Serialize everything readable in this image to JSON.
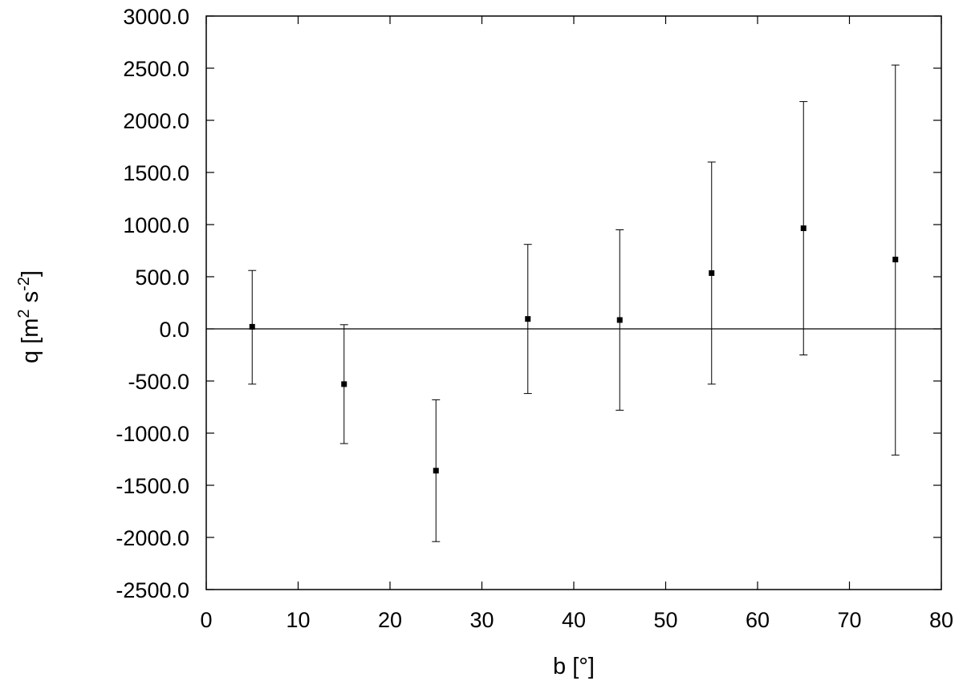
{
  "chart_data": {
    "type": "scatter",
    "title": "",
    "xlabel": "b [°]",
    "ylabel": {
      "main": "q [m",
      "exp1": "2",
      "mid": " s",
      "exp2": "-2",
      "end": "]"
    },
    "xlim": [
      0,
      80
    ],
    "ylim": [
      -2500,
      3000
    ],
    "x_ticks": [
      0,
      10,
      20,
      30,
      40,
      50,
      60,
      70,
      80
    ],
    "x_tick_labels": [
      "0",
      "10",
      "20",
      "30",
      "40",
      "50",
      "60",
      "70",
      "80"
    ],
    "y_ticks": [
      -2500,
      -2000,
      -1500,
      -1000,
      -500,
      0,
      500,
      1000,
      1500,
      2000,
      2500,
      3000
    ],
    "y_tick_labels": [
      "-2500.0",
      "-2000.0",
      "-1500.0",
      "-1000.0",
      "-500.0",
      "0.0",
      "500.0",
      "1000.0",
      "1500.0",
      "2000.0",
      "2500.0",
      "3000.0"
    ],
    "zero_line": true,
    "grid": false,
    "legend": "none",
    "colors": {
      "marks": "#000000",
      "background": "#ffffff"
    },
    "points": [
      {
        "x": 5,
        "y": 20,
        "err_low": -530,
        "err_high": 560
      },
      {
        "x": 15,
        "y": -530,
        "err_low": -1100,
        "err_high": 40
      },
      {
        "x": 25,
        "y": -1360,
        "err_low": -2040,
        "err_high": -680
      },
      {
        "x": 35,
        "y": 95,
        "err_low": -620,
        "err_high": 810
      },
      {
        "x": 45,
        "y": 85,
        "err_low": -780,
        "err_high": 950
      },
      {
        "x": 55,
        "y": 535,
        "err_low": -530,
        "err_high": 1600
      },
      {
        "x": 65,
        "y": 965,
        "err_low": -250,
        "err_high": 2180
      },
      {
        "x": 75,
        "y": 665,
        "err_low": -1210,
        "err_high": 2530
      }
    ]
  }
}
